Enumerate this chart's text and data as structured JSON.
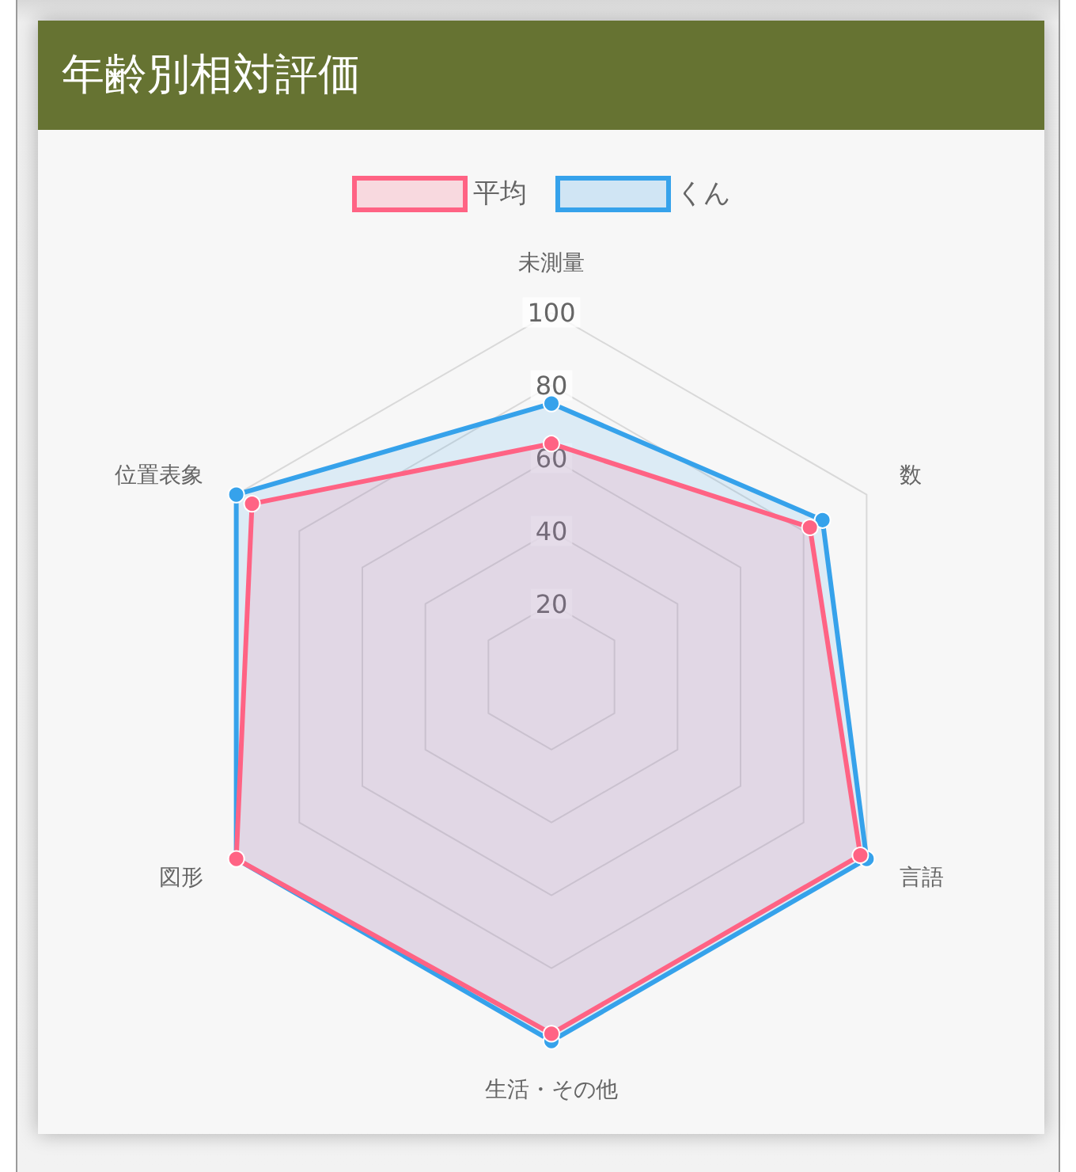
{
  "chart_data": {
    "type": "radar",
    "title": "年齢別相対評価",
    "categories": [
      "未測量",
      "数",
      "言語",
      "生活・その他",
      "図形",
      "位置表象"
    ],
    "series": [
      {
        "name": "平均",
        "color": "#ff6384",
        "values": [
          64,
          82,
          98,
          98,
          100,
          95
        ]
      },
      {
        "name": "くん",
        "color": "#36a2eb",
        "values": [
          75,
          86,
          100,
          100,
          100,
          100
        ]
      }
    ],
    "ylim": [
      0,
      100
    ],
    "yticks": [
      20,
      40,
      60,
      80,
      100
    ],
    "grid": true,
    "legend": "top",
    "marker": "circle",
    "line_style": "solid"
  }
}
